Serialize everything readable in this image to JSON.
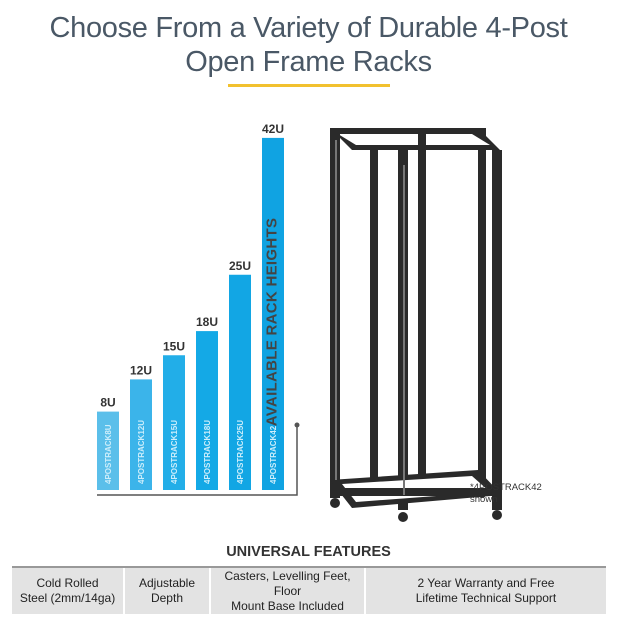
{
  "header": {
    "title_line1": "Choose From a Variety of Durable 4-Post",
    "title_line2": "Open Frame Racks"
  },
  "chart_data": {
    "type": "bar",
    "categories": [
      "4POSTRACK8U",
      "4POSTRACK12U",
      "4POSTRACK15U",
      "4POSTRACK18U",
      "4POSTRACK25U",
      "4POSTRACK42"
    ],
    "values": [
      8,
      12,
      15,
      18,
      25,
      42
    ],
    "data_labels": [
      "8U",
      "12U",
      "15U",
      "18U",
      "25U",
      "42U"
    ],
    "ylabel": "AVAILABLE RACK HEIGHTS",
    "colors": [
      "#5bbfea",
      "#3bb4ea",
      "#22aee8",
      "#14a9e6",
      "#12a6e4",
      "#10a3e2"
    ]
  },
  "product_note": {
    "line1": "*4POSTRACK42",
    "line2": "shown"
  },
  "features": {
    "title": "UNIVERSAL FEATURES",
    "items": [
      {
        "line1": "Cold Rolled",
        "line2": "Steel (2mm/14ga)"
      },
      {
        "line1": "Adjustable",
        "line2": "Depth"
      },
      {
        "line1": "Casters, Levelling Feet, Floor",
        "line2": "Mount Base Included"
      },
      {
        "line1": "2 Year Warranty and Free",
        "line2": "Lifetime Technical Support"
      }
    ]
  }
}
